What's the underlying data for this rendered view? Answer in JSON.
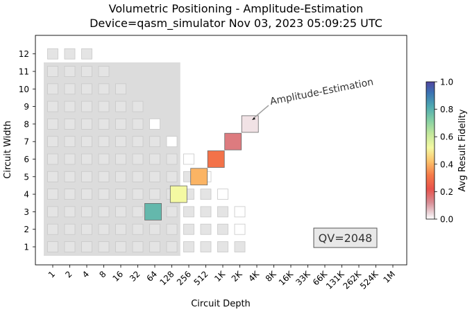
{
  "chart_data": {
    "type": "heatmap",
    "title_line1": "Volumetric Positioning - Amplitude-Estimation",
    "title_line2": "Device=qasm_simulator  Nov 03, 2023 05:09:25 UTC",
    "xlabel": "Circuit Depth",
    "ylabel": "Circuit Width",
    "x_ticks": [
      "1",
      "2",
      "4",
      "8",
      "16",
      "32",
      "64",
      "128",
      "256",
      "512",
      "1K",
      "2K",
      "4K",
      "8K",
      "16K",
      "33K",
      "66K",
      "131K",
      "262K",
      "524K",
      "1M"
    ],
    "y_ticks": [
      "1",
      "2",
      "3",
      "4",
      "5",
      "6",
      "7",
      "8",
      "9",
      "10",
      "11",
      "12"
    ],
    "qv_label": "QV=2048",
    "annotation": "Amplitude-Estimation",
    "colorbar": {
      "label": "Avg Result Fidelity",
      "ticks": [
        "0.0",
        "0.2",
        "0.4",
        "0.6",
        "0.8",
        "1.0"
      ],
      "range": [
        0,
        1
      ]
    },
    "results": [
      {
        "width": 3,
        "depth_index": 5.9,
        "fidelity": 0.78,
        "size": 1.0
      },
      {
        "width": 4,
        "depth_index": 7.4,
        "fidelity": 0.52,
        "size": 1.0
      },
      {
        "width": 5,
        "depth_index": 8.6,
        "fidelity": 0.4,
        "size": 1.0
      },
      {
        "width": 6,
        "depth_index": 9.6,
        "fidelity": 0.3,
        "size": 1.0
      },
      {
        "width": 7,
        "depth_index": 10.6,
        "fidelity": 0.15,
        "size": 1.0
      },
      {
        "width": 8,
        "depth_index": 11.6,
        "fidelity": 0.03,
        "size": 1.0
      }
    ],
    "qv_region": {
      "max_width": 11,
      "max_depth_index": 7.5
    },
    "colors": {
      "region": "#dcdcdc",
      "cell_fill": "#e4e4e4",
      "cell_edge": "#c8c8c8",
      "result_edge": "#666666"
    }
  }
}
